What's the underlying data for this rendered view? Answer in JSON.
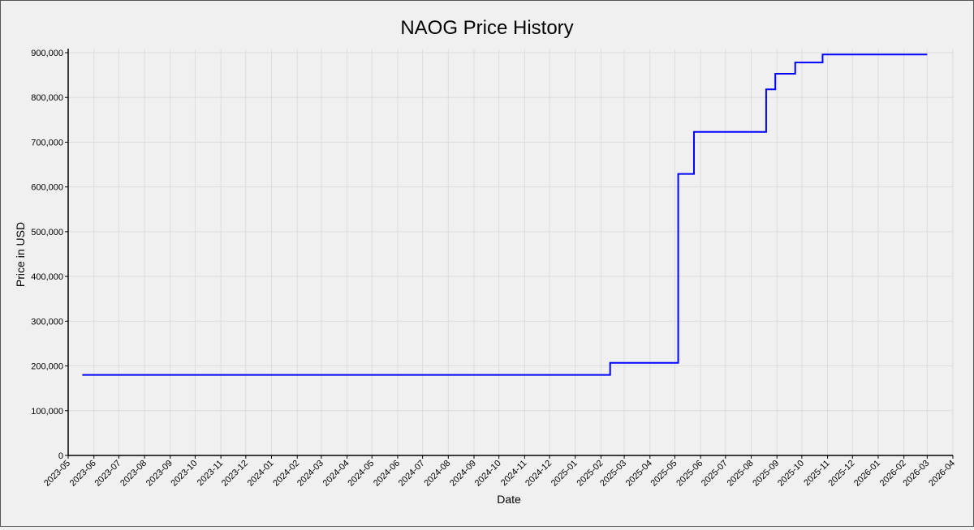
{
  "chart_data": {
    "type": "line",
    "title": "NAOG Price History",
    "xlabel": "Date",
    "ylabel": "Price in USD",
    "ylim": [
      0,
      900000
    ],
    "xlim": [
      "2023-05-01",
      "2026-04-01"
    ],
    "yticks": [
      "0",
      "100,000",
      "200,000",
      "300,000",
      "400,000",
      "500,000",
      "600,000",
      "700,000",
      "800,000",
      "900,000"
    ],
    "xticks": [
      "2023-05",
      "2023-06",
      "2023-07",
      "2023-08",
      "2023-09",
      "2023-10",
      "2023-11",
      "2023-12",
      "2024-01",
      "2024-02",
      "2024-03",
      "2024-04",
      "2024-05",
      "2024-06",
      "2024-07",
      "2024-08",
      "2024-09",
      "2024-10",
      "2024-11",
      "2024-12",
      "2025-01",
      "2025-02",
      "2025-03",
      "2025-04",
      "2025-05",
      "2025-06",
      "2025-07",
      "2025-08",
      "2025-09",
      "2025-10",
      "2025-11",
      "2025-12",
      "2026-01",
      "2026-02",
      "2026-03",
      "2026-04"
    ],
    "grid": true,
    "line_color": "#0000ff",
    "series": [
      {
        "points": [
          [
            "2023-05-18",
            180000
          ],
          [
            "2025-02-12",
            180000
          ],
          [
            "2025-02-12",
            207000
          ],
          [
            "2025-05-05",
            207000
          ],
          [
            "2025-05-05",
            629000
          ],
          [
            "2025-05-24",
            629000
          ],
          [
            "2025-05-24",
            723000
          ],
          [
            "2025-08-19",
            723000
          ],
          [
            "2025-08-19",
            818000
          ],
          [
            "2025-08-30",
            818000
          ],
          [
            "2025-08-30",
            853000
          ],
          [
            "2025-09-23",
            853000
          ],
          [
            "2025-09-23",
            878000
          ],
          [
            "2025-10-26",
            878000
          ],
          [
            "2025-10-26",
            896000
          ],
          [
            "2026-03-01",
            896000
          ]
        ]
      }
    ]
  }
}
